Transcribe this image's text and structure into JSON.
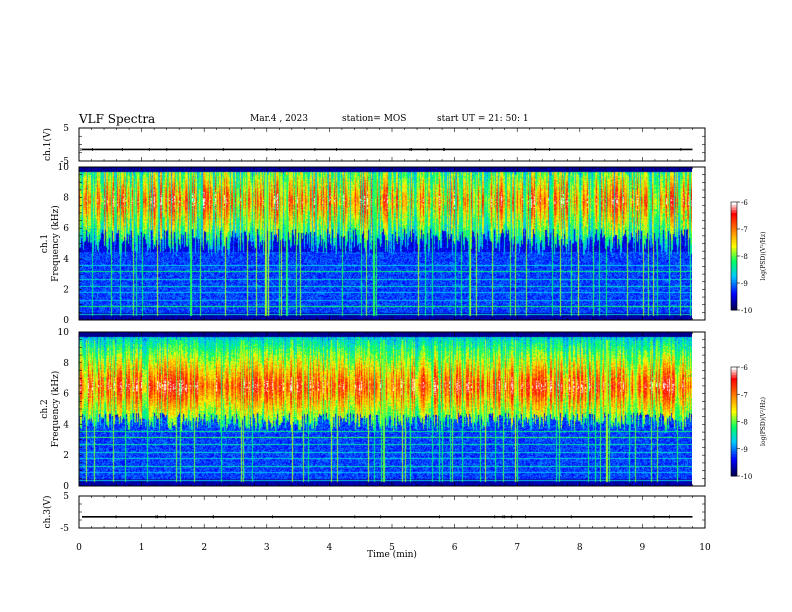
{
  "header": {
    "title": "VLF Spectra",
    "date": "Mar.4 , 2023",
    "station": "station= MOS",
    "start": "start UT = 21: 50: 1"
  },
  "chart_data": [
    {
      "type": "line",
      "name": "ch1-waveform",
      "ylabel": "ch.1(V)",
      "ylim": [
        -5,
        5
      ],
      "yticks": [
        "5",
        "-5"
      ],
      "xlim": [
        0,
        10
      ],
      "level": -1.5
    },
    {
      "type": "heatmap",
      "name": "ch1-spectrogram",
      "ylabel_line1": "ch.1",
      "ylabel_line2": "Frequency (kHz)",
      "ylim": [
        0,
        10
      ],
      "yticks": [
        "0",
        "2",
        "4",
        "6",
        "8",
        "10"
      ],
      "xlim": [
        0,
        9.8
      ],
      "colorbar": {
        "label": "log(PSD)(V²/Hz)",
        "range": [
          -10,
          -6
        ],
        "ticks": [
          "-6",
          "-7",
          "-8",
          "-9",
          "-10"
        ]
      }
    },
    {
      "type": "heatmap",
      "name": "ch2-spectrogram",
      "ylabel_line1": "ch.2",
      "ylabel_line2": "Frequency (kHz)",
      "ylim": [
        0,
        10
      ],
      "yticks": [
        "0",
        "2",
        "4",
        "6",
        "8",
        "10"
      ],
      "xlim": [
        0,
        9.8
      ],
      "colorbar": {
        "label": "log(PSD)(V²/Hz)",
        "range": [
          -10,
          -6
        ],
        "ticks": [
          "-6",
          "-7",
          "-8",
          "-9",
          "-10"
        ]
      }
    },
    {
      "type": "line",
      "name": "ch3-waveform",
      "ylabel": "ch.3(V)",
      "ylim": [
        -5,
        5
      ],
      "yticks": [
        "5",
        "-5"
      ],
      "xlim": [
        0,
        10
      ],
      "level": -1.5
    }
  ],
  "xaxis": {
    "label": "Time (min)",
    "range": [
      0,
      10
    ],
    "ticks": [
      "0",
      "1",
      "2",
      "3",
      "4",
      "5",
      "6",
      "7",
      "8",
      "9",
      "10"
    ]
  },
  "colors": {
    "background": "#000033",
    "colormap": [
      "#00003c",
      "#0000ff",
      "#00c8ff",
      "#00ff64",
      "#ffff00",
      "#ff8000",
      "#ff0000",
      "#ffffff"
    ]
  }
}
